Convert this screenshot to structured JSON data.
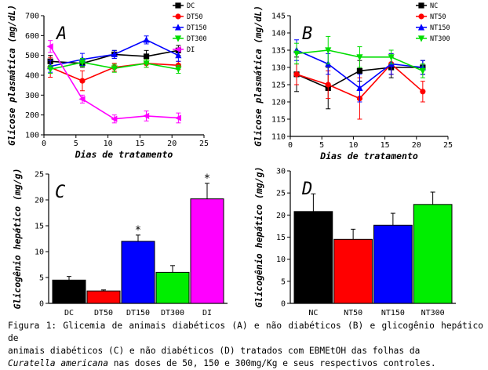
{
  "caption": {
    "line1": "Figura 1: Glicemia de animais diabéticos (A) e não diabéticos (B) e glicogênio hepático de",
    "line2": "animais diabéticos (C) e  não diabéticos (D) tratados com EBMEtOH das folhas da",
    "line3_italic": "Curatella americana",
    "line3_rest": " nas doses de 50, 150 e 300mg/Kg e seus respectivos controles."
  },
  "chart_data": [
    {
      "panel": "A",
      "type": "line",
      "ylabel": "Glicose plasmática (mg/dL)",
      "xlabel": "Dias de tratamento",
      "xlim": [
        0,
        25
      ],
      "ylim": [
        100,
        700
      ],
      "xticks": [
        0,
        5,
        10,
        15,
        20,
        25
      ],
      "yticks": [
        100,
        200,
        300,
        400,
        500,
        600,
        700
      ],
      "legend_position": "top-right",
      "series": [
        {
          "name": "DC",
          "color": "#000000",
          "marker": "square",
          "x": [
            1,
            6,
            11,
            16,
            21
          ],
          "y": [
            470,
            460,
            505,
            495,
            525
          ],
          "err": [
            30,
            20,
            20,
            30,
            25
          ]
        },
        {
          "name": "DT50",
          "color": "#ff0000",
          "marker": "circle",
          "x": [
            1,
            6,
            11,
            16,
            21
          ],
          "y": [
            440,
            372,
            440,
            460,
            450
          ],
          "err": [
            50,
            50,
            20,
            20,
            20
          ]
        },
        {
          "name": "DT150",
          "color": "#0000ff",
          "marker": "triangle",
          "x": [
            1,
            6,
            11,
            16,
            21
          ],
          "y": [
            445,
            480,
            505,
            578,
            500
          ],
          "err": [
            30,
            30,
            20,
            20,
            30
          ]
        },
        {
          "name": "DT300",
          "color": "#00dd00",
          "marker": "triangle-down",
          "x": [
            1,
            6,
            11,
            16,
            21
          ],
          "y": [
            430,
            465,
            435,
            460,
            430
          ],
          "err": [
            20,
            20,
            20,
            20,
            20
          ]
        },
        {
          "name": "DI",
          "color": "#ff00ff",
          "marker": "triangle-left",
          "x": [
            1,
            6,
            11,
            16,
            21
          ],
          "y": [
            545,
            280,
            180,
            195,
            185
          ],
          "err": [
            30,
            20,
            20,
            25,
            25
          ]
        }
      ]
    },
    {
      "panel": "B",
      "type": "line",
      "ylabel": "Glicose plasmática (mg/dL)",
      "xlabel": "Dias de tratamento",
      "xlim": [
        0,
        25
      ],
      "ylim": [
        110,
        145
      ],
      "xticks": [
        0,
        5,
        10,
        15,
        20,
        25
      ],
      "yticks": [
        110,
        115,
        120,
        125,
        130,
        135,
        140,
        145
      ],
      "legend_position": "top-right",
      "series": [
        {
          "name": "NC",
          "color": "#000000",
          "marker": "square",
          "x": [
            1,
            6,
            11,
            16,
            21
          ],
          "y": [
            128,
            124,
            129,
            130,
            130
          ],
          "err": [
            5,
            6,
            3,
            3,
            2
          ]
        },
        {
          "name": "NT50",
          "color": "#ff0000",
          "marker": "circle",
          "x": [
            1,
            6,
            11,
            16,
            21
          ],
          "y": [
            128,
            125,
            121,
            131,
            123
          ],
          "err": [
            3,
            4,
            6,
            3,
            3
          ]
        },
        {
          "name": "NT150",
          "color": "#0000ff",
          "marker": "triangle",
          "x": [
            1,
            6,
            11,
            16,
            21
          ],
          "y": [
            135,
            131,
            124,
            131,
            130
          ],
          "err": [
            3,
            3,
            4,
            3,
            2
          ]
        },
        {
          "name": "NT300",
          "color": "#00dd00",
          "marker": "triangle-down",
          "x": [
            1,
            6,
            11,
            16,
            21
          ],
          "y": [
            134,
            135,
            133,
            133,
            129
          ],
          "err": [
            3,
            4,
            3,
            2,
            2
          ]
        }
      ]
    },
    {
      "panel": "C",
      "type": "bar",
      "ylabel": "Glicogênio hepático (mg/g)",
      "categories": [
        "DC",
        "DT50",
        "DT150",
        "DT300",
        "DI"
      ],
      "values": [
        4.5,
        2.4,
        12.0,
        6.0,
        20.2
      ],
      "err": [
        0.7,
        0.2,
        1.2,
        1.3,
        3.0
      ],
      "colors": [
        "#000000",
        "#ff0000",
        "#0000ff",
        "#00ee00",
        "#ff00ff"
      ],
      "significance": [
        "",
        "",
        "*",
        "",
        "*"
      ],
      "ylim": [
        0,
        25
      ],
      "yticks": [
        0,
        5,
        10,
        15,
        20,
        25
      ]
    },
    {
      "panel": "D",
      "type": "bar",
      "ylabel": "Glicogênio hepático (mg/g)",
      "categories": [
        "NC",
        "NT50",
        "NT150",
        "NT300"
      ],
      "values": [
        20.8,
        14.5,
        17.7,
        22.4
      ],
      "err": [
        4.0,
        2.3,
        2.7,
        2.8
      ],
      "colors": [
        "#000000",
        "#ff0000",
        "#0000ff",
        "#00ee00"
      ],
      "significance": [
        "",
        "",
        "",
        ""
      ],
      "ylim": [
        0,
        30
      ],
      "yticks": [
        0,
        5,
        10,
        15,
        20,
        25,
        30
      ]
    }
  ]
}
